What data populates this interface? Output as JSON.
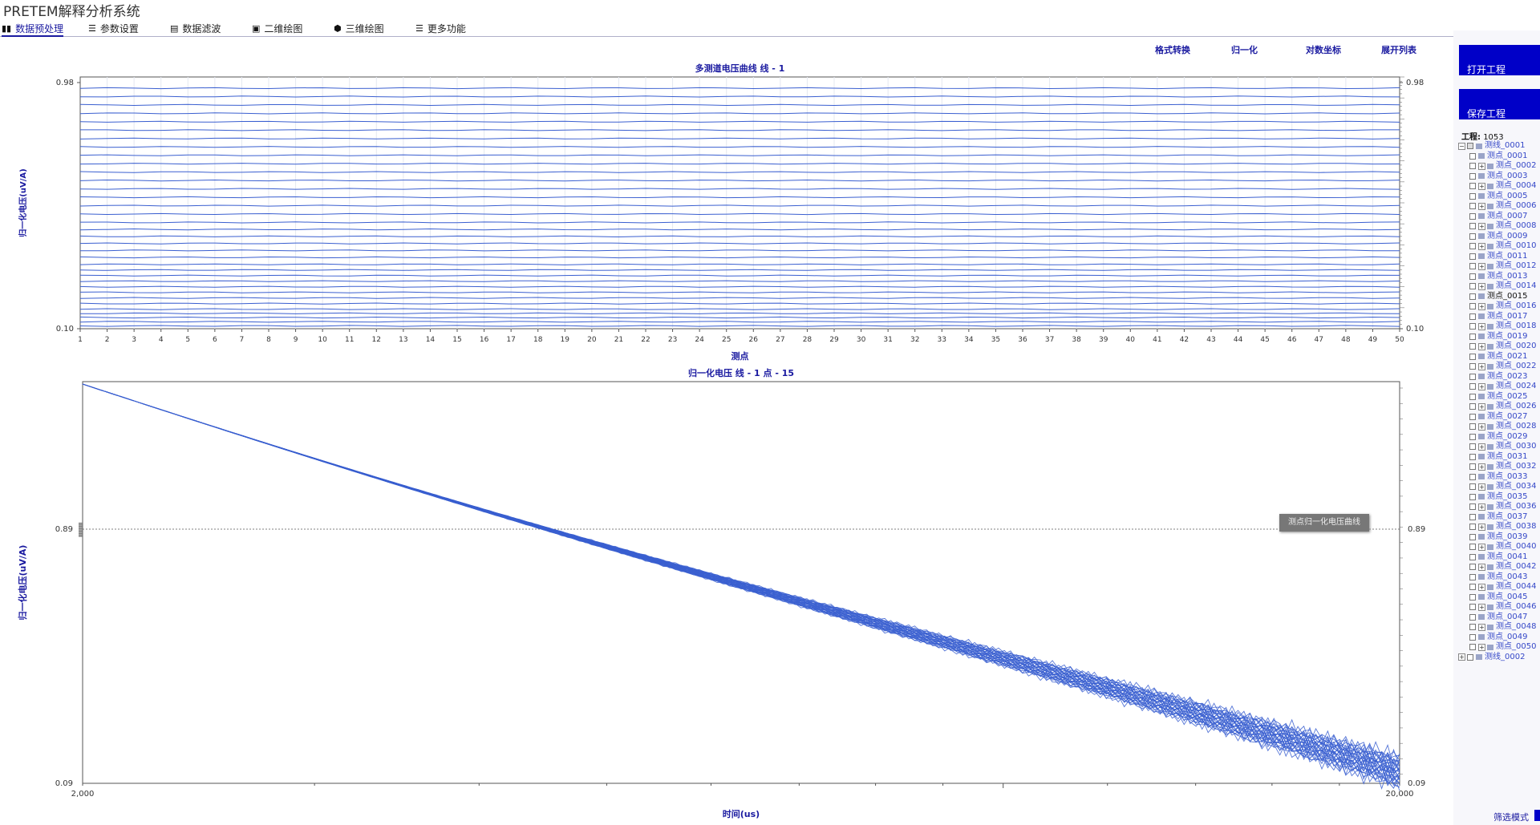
{
  "app": {
    "title": "PRETEM解释分析系统"
  },
  "menu": [
    {
      "label": "数据预处理",
      "icon": "bar-chart-icon",
      "active": true
    },
    {
      "label": "参数设置",
      "icon": "sliders-icon",
      "active": false
    },
    {
      "label": "数据滤波",
      "icon": "filter-chart-icon",
      "active": false
    },
    {
      "label": "二维绘图",
      "icon": "image-icon",
      "active": false
    },
    {
      "label": "三维绘图",
      "icon": "cube-icon",
      "active": false
    },
    {
      "label": "更多功能",
      "icon": "menu-icon",
      "active": false
    }
  ],
  "toolbar": {
    "format_convert": "格式转换",
    "normalize": "归一化",
    "log_coords": "对数坐标",
    "expand_list": "展开列表"
  },
  "sidebar": {
    "open_project": "打开工程",
    "save_project": "保存工程",
    "project_label": "工程:",
    "project_name": "1053",
    "mode_label": "筛选模式",
    "lines": [
      {
        "label": "测线_0001",
        "expanded": true
      },
      {
        "label": "测线_0002",
        "expanded": false
      }
    ],
    "points": [
      "测点_0001",
      "测点_0002",
      "测点_0003",
      "测点_0004",
      "测点_0005",
      "测点_0006",
      "测点_0007",
      "测点_0008",
      "测点_0009",
      "测点_0010",
      "测点_0011",
      "测点_0012",
      "测点_0013",
      "测点_0014",
      "测点_0015",
      "测点_0016",
      "测点_0017",
      "测点_0018",
      "测点_0019",
      "测点_0020",
      "测点_0021",
      "测点_0022",
      "测点_0023",
      "测点_0024",
      "测点_0025",
      "测点_0026",
      "测点_0027",
      "测点_0028",
      "测点_0029",
      "测点_0030",
      "测点_0031",
      "测点_0032",
      "测点_0033",
      "测点_0034",
      "测点_0035",
      "测点_0036",
      "测点_0037",
      "测点_0038",
      "测点_0039",
      "测点_0040",
      "测点_0041",
      "测点_0042",
      "测点_0043",
      "测点_0044",
      "测点_0045",
      "测点_0046",
      "测点_0047",
      "测点_0048",
      "测点_0049",
      "测点_0050"
    ],
    "selected_point": "测点_0015"
  },
  "tooltip": "测点归一化电压曲线",
  "chart_data": [
    {
      "type": "line",
      "title": "多测道电压曲线 线 - 1",
      "xlabel": "测点",
      "ylabel": "归一化电压(uV/A)",
      "x": [
        1,
        2,
        3,
        4,
        5,
        6,
        7,
        8,
        9,
        10,
        11,
        12,
        13,
        14,
        15,
        16,
        17,
        18,
        19,
        20,
        21,
        22,
        23,
        24,
        25,
        26,
        27,
        28,
        29,
        30,
        31,
        32,
        33,
        34,
        35,
        36,
        37,
        38,
        39,
        40,
        41,
        42,
        43,
        44,
        45,
        46,
        47,
        48,
        49,
        50
      ],
      "yticks": [
        "0.10",
        "0.98"
      ],
      "series_count": 35,
      "series_values": [
        0.11,
        0.125,
        0.14,
        0.155,
        0.17,
        0.19,
        0.21,
        0.23,
        0.25,
        0.27,
        0.29,
        0.31,
        0.33,
        0.355,
        0.38,
        0.405,
        0.43,
        0.455,
        0.48,
        0.51,
        0.54,
        0.57,
        0.6,
        0.63,
        0.66,
        0.69,
        0.72,
        0.75,
        0.78,
        0.81,
        0.84,
        0.87,
        0.9,
        0.93,
        0.96
      ],
      "grid": true,
      "color": "#3a5fd0"
    },
    {
      "type": "line",
      "title": "归一化电压 线 - 1   点 - 15",
      "xlabel": "时间(us)",
      "ylabel": "归一化电压(uV/A)",
      "xlim": [
        2000,
        20000
      ],
      "xticks": [
        "2,000",
        "20,000"
      ],
      "yticks": [
        "0.09",
        "0.89"
      ],
      "reference_line": 0.89,
      "series_count": 30,
      "start": [
        2000,
        2.6
      ],
      "end": [
        20000,
        0.1
      ],
      "log_scale": true,
      "color": "#3a5fd0"
    }
  ]
}
